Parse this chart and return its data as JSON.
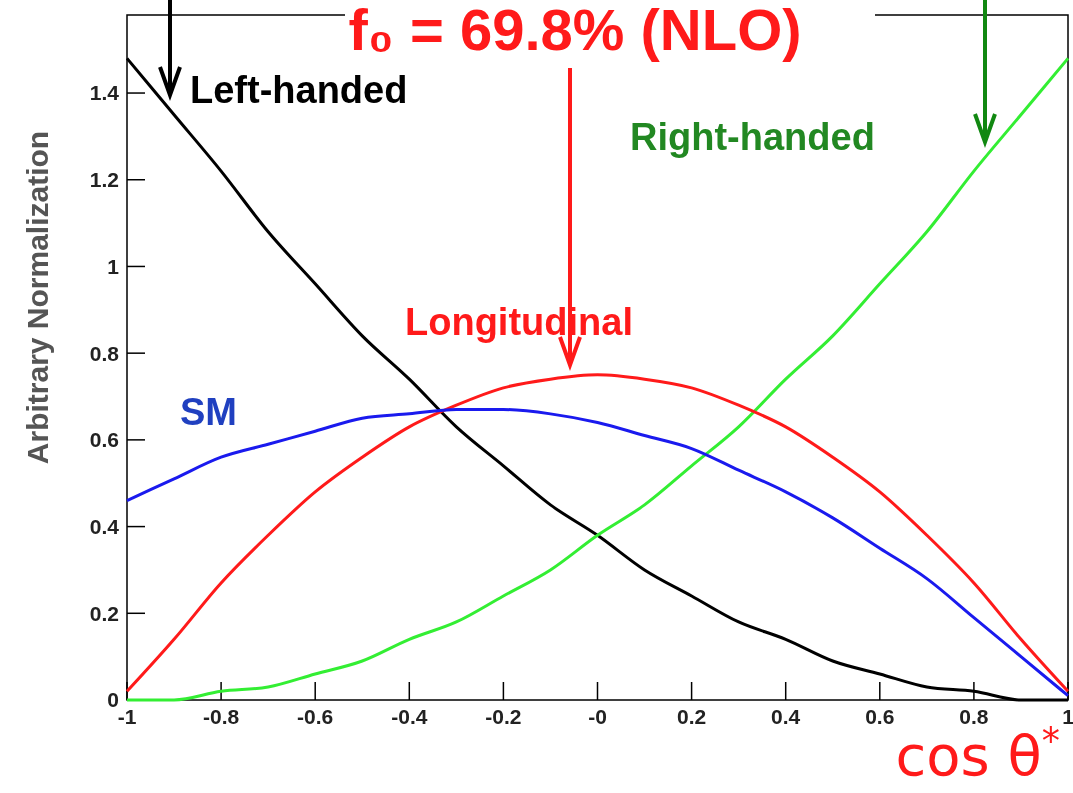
{
  "chart_data": {
    "type": "line",
    "title": "f₀ = 69.8% (NLO)",
    "xlabel": "cos θ$^{*}$",
    "ylabel": "Arbitrary Normalization",
    "x": [
      -1,
      -0.9,
      -0.8,
      -0.7,
      -0.6,
      -0.5,
      -0.4,
      -0.3,
      -0.2,
      -0.1,
      0,
      0.1,
      0.2,
      0.3,
      0.4,
      0.5,
      0.6,
      0.7,
      0.8,
      0.9,
      1
    ],
    "series": [
      {
        "name": "Left-handed",
        "color": "#000000",
        "values": [
          1.48,
          1.35,
          1.22,
          1.08,
          0.96,
          0.84,
          0.74,
          0.63,
          0.54,
          0.45,
          0.38,
          0.3,
          0.24,
          0.18,
          0.14,
          0.09,
          0.06,
          0.03,
          0.02,
          0.0,
          0
        ]
      },
      {
        "name": "Right-handed",
        "color": "#33ee33",
        "values": [
          0,
          0.0,
          0.02,
          0.03,
          0.06,
          0.09,
          0.14,
          0.18,
          0.24,
          0.3,
          0.38,
          0.45,
          0.54,
          0.63,
          0.74,
          0.84,
          0.96,
          1.08,
          1.22,
          1.35,
          1.48
        ]
      },
      {
        "name": "Longitudinal",
        "color": "#ff1a1a",
        "values": [
          0.02,
          0.14,
          0.27,
          0.38,
          0.48,
          0.56,
          0.63,
          0.68,
          0.72,
          0.74,
          0.75,
          0.74,
          0.72,
          0.68,
          0.63,
          0.56,
          0.48,
          0.38,
          0.27,
          0.14,
          0.02
        ]
      },
      {
        "name": "SM",
        "color": "#1a1aee",
        "values": [
          0.46,
          0.51,
          0.56,
          0.59,
          0.62,
          0.65,
          0.66,
          0.67,
          0.67,
          0.66,
          0.64,
          0.61,
          0.58,
          0.53,
          0.48,
          0.42,
          0.35,
          0.28,
          0.19,
          0.1,
          0.01
        ]
      }
    ],
    "xlim": [
      -1,
      1
    ],
    "xticks": [
      -1,
      -0.8,
      -0.6,
      -0.4,
      -0.2,
      {
        "value": 0,
        "label": "-0"
      },
      0.2,
      0.4,
      0.6,
      0.8,
      1
    ],
    "ylim": [
      0,
      1.58
    ],
    "yticks": [
      0,
      0.2,
      0.4,
      0.6,
      0.8,
      1,
      1.2,
      1.4
    ],
    "grid": false,
    "marker": "none",
    "line_style": "solid"
  }
}
